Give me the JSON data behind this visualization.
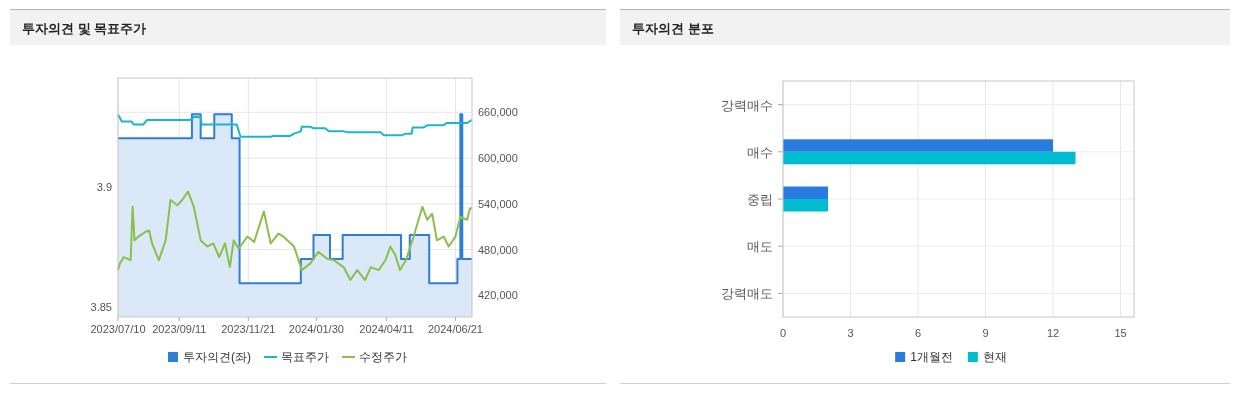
{
  "chart_data": [
    {
      "type": "line",
      "title": "투자의견 및 목표주가",
      "xlim": [
        "2023-07-10",
        "2024-07-08"
      ],
      "xticks": [
        {
          "value": "2023-07-10",
          "label": "2023/07/10"
        },
        {
          "value": "2023-09-11",
          "label": "2023/09/11"
        },
        {
          "value": "2023-11-21",
          "label": "2023/11/21"
        },
        {
          "value": "2024-01-30",
          "label": "2024/01/30"
        },
        {
          "value": "2024-04-11",
          "label": "2024/04/11"
        },
        {
          "value": "2024-06-21",
          "label": "2024/06/21"
        }
      ],
      "ylim": [
        3.846,
        3.945
      ],
      "yticks": [
        3.85,
        3.9
      ],
      "y2lim": [
        391500,
        705000
      ],
      "y2ticks": [
        {
          "value": 420000,
          "label": "420,000"
        },
        {
          "value": 480000,
          "label": "480,000"
        },
        {
          "value": 540000,
          "label": "540,000"
        },
        {
          "value": 600000,
          "label": "600,000"
        },
        {
          "value": 660000,
          "label": "660,000"
        }
      ],
      "grid": true,
      "legend": "bottom",
      "series": [
        {
          "name": "투자의견(좌)",
          "type": "area",
          "color": "#2f7ed8",
          "x": [
            "2023-07-10",
            "2023-09-24",
            "2023-09-24",
            "2023-10-03",
            "2023-10-03",
            "2023-10-17",
            "2023-10-17",
            "2023-11-04",
            "2023-11-04",
            "2023-11-12",
            "2023-11-12",
            "2024-01-14",
            "2024-01-14",
            "2024-01-27",
            "2024-01-27",
            "2024-02-13",
            "2024-02-13",
            "2024-02-26",
            "2024-02-26",
            "2024-04-26",
            "2024-04-26",
            "2024-05-05",
            "2024-05-05",
            "2024-05-25",
            "2024-05-25",
            "2024-06-23",
            "2024-06-23",
            "2024-06-26",
            "2024-06-26",
            "2024-06-28",
            "2024-06-28",
            "2024-07-08"
          ],
          "values": [
            3.92,
            3.92,
            3.93,
            3.93,
            3.92,
            3.92,
            3.93,
            3.93,
            3.92,
            3.92,
            3.86,
            3.86,
            3.87,
            3.87,
            3.88,
            3.88,
            3.87,
            3.87,
            3.88,
            3.88,
            3.87,
            3.87,
            3.88,
            3.88,
            3.86,
            3.86,
            3.87,
            3.87,
            3.93,
            3.93,
            3.87,
            3.87
          ]
        },
        {
          "name": "목표주가",
          "type": "line",
          "axis": "y2",
          "color": "#1ab6cc",
          "x": [
            "2023-07-10",
            "2023-07-14",
            "2023-07-24",
            "2023-07-26",
            "2023-08-05",
            "2023-08-09",
            "2023-09-22",
            "2023-09-26",
            "2023-10-03",
            "2023-10-04",
            "2023-11-09",
            "2023-11-13",
            "2023-12-14",
            "2023-12-17",
            "2024-01-03",
            "2024-01-07",
            "2024-01-14",
            "2024-01-15",
            "2024-01-24",
            "2024-01-27",
            "2024-02-08",
            "2024-02-12",
            "2024-02-27",
            "2024-03-02",
            "2024-04-05",
            "2024-04-08",
            "2024-04-27",
            "2024-05-01",
            "2024-05-07",
            "2024-05-08",
            "2024-05-19",
            "2024-05-23",
            "2024-06-09",
            "2024-06-12",
            "2024-07-03",
            "2024-07-08"
          ],
          "values": [
            657000,
            648000,
            648000,
            644000,
            644000,
            650000,
            650000,
            654000,
            654000,
            644000,
            644000,
            628000,
            628000,
            629000,
            629000,
            632000,
            635000,
            641000,
            641000,
            639000,
            639000,
            635000,
            635000,
            634000,
            634000,
            630000,
            630000,
            632000,
            632000,
            640000,
            640000,
            643000,
            643000,
            646000,
            646000,
            650000
          ]
        },
        {
          "name": "수정주가",
          "type": "line",
          "axis": "y2",
          "color": "#8cbf4a",
          "x": [
            "2023-07-10",
            "2023-07-12",
            "2023-07-16",
            "2023-07-23",
            "2023-07-25",
            "2023-07-27",
            "2023-07-31",
            "2023-08-07",
            "2023-08-11",
            "2023-08-14",
            "2023-08-21",
            "2023-08-28",
            "2023-09-02",
            "2023-09-09",
            "2023-09-14",
            "2023-09-20",
            "2023-09-26",
            "2023-10-03",
            "2023-10-10",
            "2023-10-16",
            "2023-10-22",
            "2023-10-28",
            "2023-11-02",
            "2023-11-06",
            "2023-11-11",
            "2023-11-20",
            "2023-11-27",
            "2023-12-07",
            "2023-12-14",
            "2023-12-22",
            "2023-12-27",
            "2024-01-07",
            "2024-01-15",
            "2024-01-24",
            "2024-02-01",
            "2024-02-10",
            "2024-02-17",
            "2024-02-27",
            "2024-03-05",
            "2024-03-12",
            "2024-03-20",
            "2024-03-26",
            "2024-04-03",
            "2024-04-10",
            "2024-04-15",
            "2024-04-20",
            "2024-04-25",
            "2024-05-01",
            "2024-05-09",
            "2024-05-18",
            "2024-05-23",
            "2024-05-28",
            "2024-06-02",
            "2024-06-09",
            "2024-06-14",
            "2024-06-21",
            "2024-06-26",
            "2024-07-03",
            "2024-07-06",
            "2024-07-08"
          ],
          "values": [
            453000,
            462000,
            470000,
            466000,
            536000,
            492000,
            497000,
            503000,
            505000,
            488000,
            466000,
            492000,
            545000,
            538000,
            545000,
            556000,
            536000,
            492000,
            484000,
            488000,
            470000,
            488000,
            457000,
            492000,
            481000,
            497000,
            490000,
            530000,
            488000,
            501000,
            497000,
            484000,
            453000,
            462000,
            477000,
            468000,
            466000,
            457000,
            440000,
            453000,
            440000,
            457000,
            453000,
            466000,
            484000,
            473000,
            453000,
            466000,
            497000,
            536000,
            519000,
            527000,
            492000,
            497000,
            484000,
            497000,
            523000,
            519000,
            534000,
            534000
          ]
        }
      ]
    },
    {
      "type": "bar",
      "title": "투자의견 분포",
      "orientation": "horizontal",
      "categories": [
        "강력매수",
        "매수",
        "중립",
        "매도",
        "강력매도"
      ],
      "xlim": [
        0,
        15.6
      ],
      "xticks": [
        0,
        3,
        6,
        9,
        12,
        15
      ],
      "grid": true,
      "legend": "bottom",
      "series": [
        {
          "name": "1개월전",
          "color": "#2a7be0",
          "values": [
            0,
            12,
            2,
            0,
            0
          ]
        },
        {
          "name": "현재",
          "color": "#00bcd0",
          "values": [
            0,
            13,
            2,
            0,
            0
          ]
        }
      ]
    }
  ]
}
